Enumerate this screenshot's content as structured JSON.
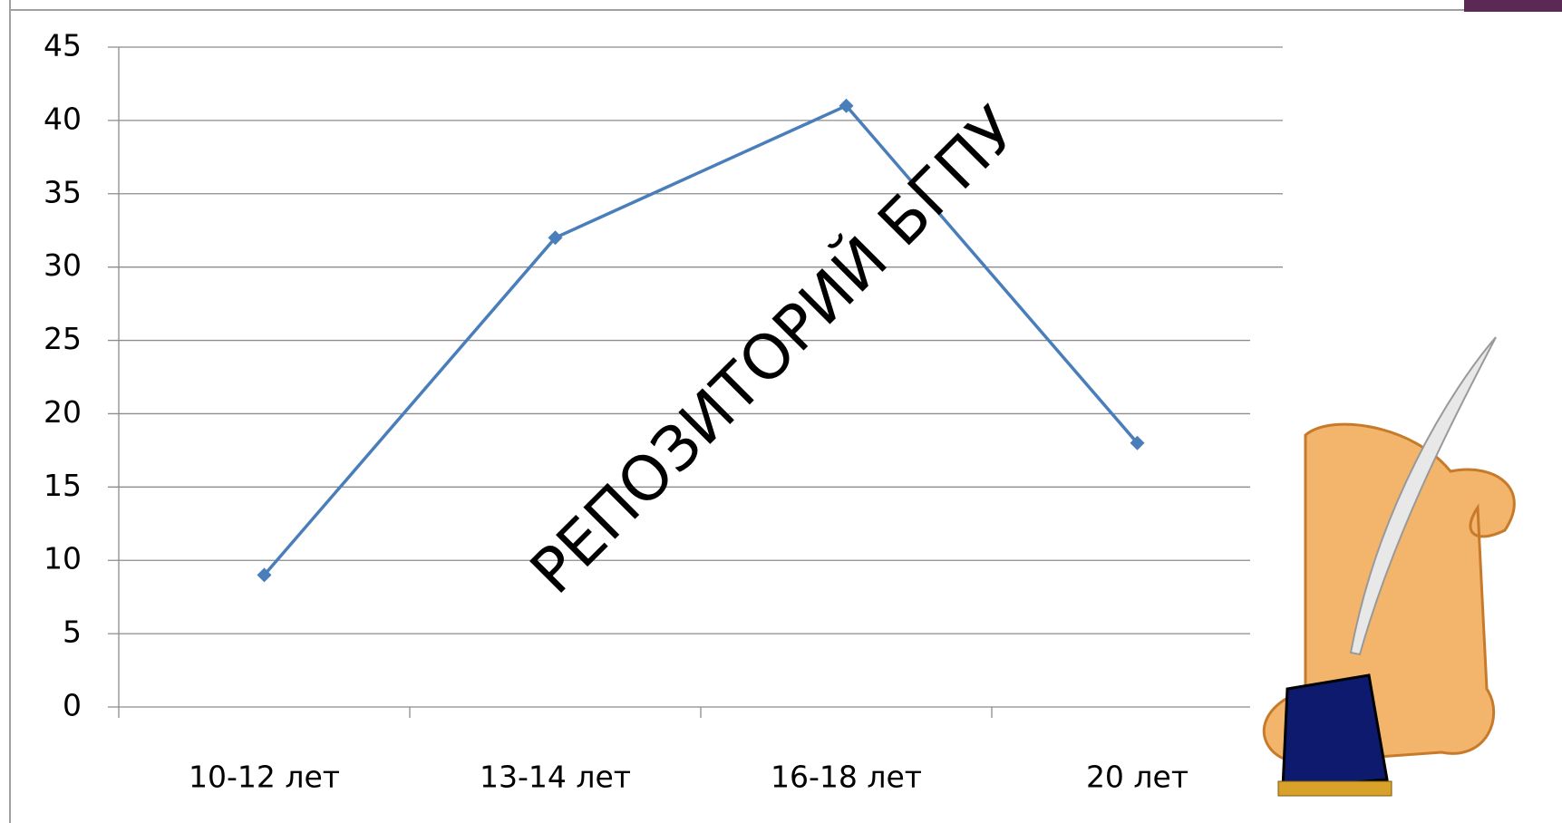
{
  "chart_data": {
    "type": "line",
    "categories": [
      "10-12 лет",
      "13-14 лет",
      "16-18 лет",
      "20 лет"
    ],
    "values": [
      9,
      32,
      41,
      18
    ],
    "color": "#4a7ebb",
    "ylim": [
      0,
      45
    ],
    "yticks": [
      0,
      5,
      10,
      15,
      20,
      25,
      30,
      35,
      40,
      45
    ],
    "grid": true,
    "watermark": "РЕПОЗИТОРИЙ БГПУ"
  }
}
